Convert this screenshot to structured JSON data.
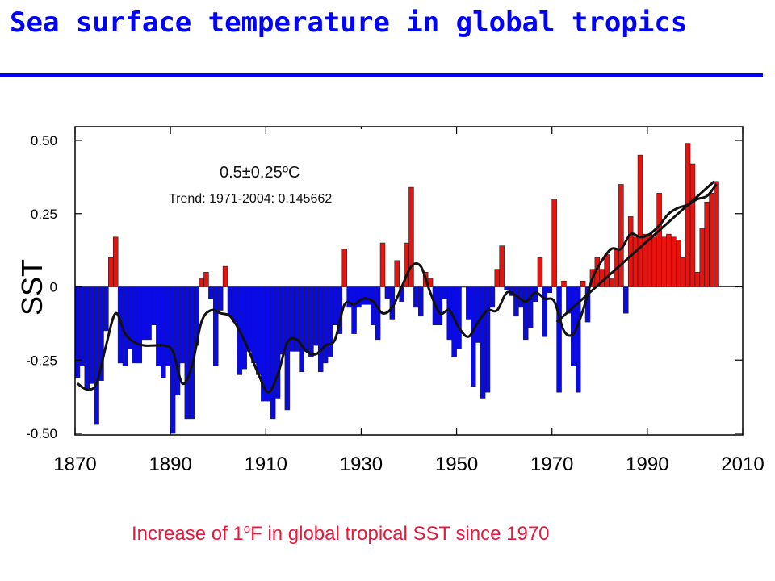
{
  "slide": {
    "title": "Sea surface temperature in global tropics",
    "caption_pre": "Increase of 1",
    "caption_sup": "o",
    "caption_post": "F in global tropical SST since 1970"
  },
  "chart_data": {
    "type": "bar",
    "ylabel": "SST",
    "xlim": [
      1870,
      2010
    ],
    "ylim": [
      -0.5,
      0.5
    ],
    "x_ticks": [
      1870,
      1890,
      1910,
      1930,
      1950,
      1970,
      1990,
      2010
    ],
    "y_ticks": [
      0.5,
      0.25,
      0,
      -0.25,
      -0.5
    ],
    "y_tick_labels": [
      "0.50",
      "0.25",
      "0",
      "-0.25",
      "-0.50"
    ],
    "annotation_range": "0.5±0.25ºC",
    "annotation_trend": "Trend: 1971-2004: 0.145662",
    "positive_color": "#e8120f",
    "negative_color": "#0a0ae6",
    "years": [
      1870,
      1871,
      1872,
      1873,
      1874,
      1875,
      1876,
      1877,
      1878,
      1879,
      1880,
      1881,
      1882,
      1883,
      1884,
      1885,
      1886,
      1887,
      1888,
      1889,
      1890,
      1891,
      1892,
      1893,
      1894,
      1895,
      1896,
      1897,
      1898,
      1899,
      1900,
      1901,
      1902,
      1903,
      1904,
      1905,
      1906,
      1907,
      1908,
      1909,
      1910,
      1911,
      1912,
      1913,
      1914,
      1915,
      1916,
      1917,
      1918,
      1919,
      1920,
      1921,
      1922,
      1923,
      1924,
      1925,
      1926,
      1927,
      1928,
      1929,
      1930,
      1931,
      1932,
      1933,
      1934,
      1935,
      1936,
      1937,
      1938,
      1939,
      1940,
      1941,
      1942,
      1943,
      1944,
      1945,
      1946,
      1947,
      1948,
      1949,
      1950,
      1951,
      1952,
      1953,
      1954,
      1955,
      1956,
      1957,
      1958,
      1959,
      1960,
      1961,
      1962,
      1963,
      1964,
      1965,
      1966,
      1967,
      1968,
      1969,
      1970,
      1971,
      1972,
      1973,
      1974,
      1975,
      1976,
      1977,
      1978,
      1979,
      1980,
      1981,
      1982,
      1983,
      1984,
      1985,
      1986,
      1987,
      1988,
      1989,
      1990,
      1991,
      1992,
      1993,
      1994,
      1995,
      1996,
      1997,
      1998,
      1999,
      2000,
      2001,
      2002,
      2003,
      2004
    ],
    "values": [
      -0.31,
      -0.27,
      -0.35,
      -0.33,
      -0.47,
      -0.32,
      -0.15,
      0.1,
      0.17,
      -0.26,
      -0.27,
      -0.21,
      -0.26,
      -0.26,
      -0.18,
      -0.18,
      -0.13,
      -0.27,
      -0.31,
      -0.27,
      -0.5,
      -0.37,
      -0.26,
      -0.45,
      -0.45,
      -0.2,
      0.03,
      0.05,
      -0.04,
      -0.27,
      -0.08,
      0.07,
      -0.1,
      -0.12,
      -0.3,
      -0.28,
      -0.22,
      -0.26,
      -0.3,
      -0.39,
      -0.39,
      -0.45,
      -0.38,
      -0.23,
      -0.42,
      -0.22,
      -0.22,
      -0.29,
      -0.22,
      -0.24,
      -0.2,
      -0.29,
      -0.26,
      -0.24,
      -0.13,
      -0.16,
      0.13,
      -0.07,
      -0.16,
      -0.07,
      -0.06,
      -0.06,
      -0.13,
      -0.18,
      0.15,
      -0.04,
      -0.11,
      0.09,
      -0.05,
      0.15,
      0.34,
      -0.07,
      -0.1,
      0.05,
      0.03,
      -0.13,
      -0.13,
      -0.04,
      -0.18,
      -0.24,
      -0.21,
      0.0,
      -0.11,
      -0.34,
      -0.19,
      -0.38,
      -0.36,
      -0.07,
      0.06,
      0.14,
      -0.01,
      -0.03,
      -0.1,
      -0.07,
      -0.18,
      -0.14,
      -0.05,
      0.1,
      -0.17,
      -0.02,
      0.3,
      -0.36,
      0.02,
      -0.09,
      -0.27,
      -0.36,
      0.02,
      -0.12,
      0.06,
      0.1,
      0.06,
      0.11,
      0.03,
      0.13,
      0.35,
      -0.09,
      0.24,
      0.17,
      0.45,
      0.18,
      0.18,
      0.17,
      0.32,
      0.17,
      0.18,
      0.17,
      0.16,
      0.1,
      0.49,
      0.42,
      0.05,
      0.2,
      0.29,
      0.32,
      0.36
    ],
    "smooth_years": [
      1870,
      1872,
      1874,
      1876,
      1878,
      1880,
      1882,
      1884,
      1886,
      1888,
      1890,
      1892,
      1894,
      1896,
      1898,
      1900,
      1902,
      1904,
      1906,
      1908,
      1910,
      1912,
      1914,
      1916,
      1918,
      1920,
      1922,
      1924,
      1926,
      1928,
      1930,
      1932,
      1934,
      1936,
      1938,
      1940,
      1942,
      1944,
      1946,
      1948,
      1950,
      1952,
      1954,
      1956,
      1958,
      1960,
      1962,
      1964,
      1966,
      1968,
      1970,
      1972,
      1974,
      1976,
      1978,
      1980,
      1982,
      1984,
      1986,
      1988,
      1990,
      1992,
      1994,
      1996,
      1998,
      2000,
      2002,
      2004
    ],
    "smooth_values": [
      -0.33,
      -0.35,
      -0.33,
      -0.2,
      -0.09,
      -0.16,
      -0.19,
      -0.2,
      -0.2,
      -0.2,
      -0.22,
      -0.33,
      -0.27,
      -0.12,
      -0.08,
      -0.09,
      -0.1,
      -0.15,
      -0.22,
      -0.3,
      -0.36,
      -0.3,
      -0.19,
      -0.18,
      -0.22,
      -0.23,
      -0.2,
      -0.18,
      -0.06,
      -0.06,
      -0.04,
      -0.05,
      -0.09,
      -0.07,
      0.0,
      0.07,
      0.07,
      -0.02,
      -0.09,
      -0.08,
      -0.14,
      -0.17,
      -0.12,
      -0.08,
      -0.08,
      -0.02,
      -0.03,
      -0.05,
      -0.02,
      -0.04,
      -0.05,
      -0.15,
      -0.16,
      -0.08,
      0.03,
      0.09,
      0.13,
      0.13,
      0.18,
      0.17,
      0.18,
      0.21,
      0.25,
      0.27,
      0.28,
      0.3,
      0.31,
      0.35
    ],
    "trend_line": {
      "x": [
        1971,
        2004
      ],
      "y": [
        -0.12,
        0.36
      ]
    }
  }
}
